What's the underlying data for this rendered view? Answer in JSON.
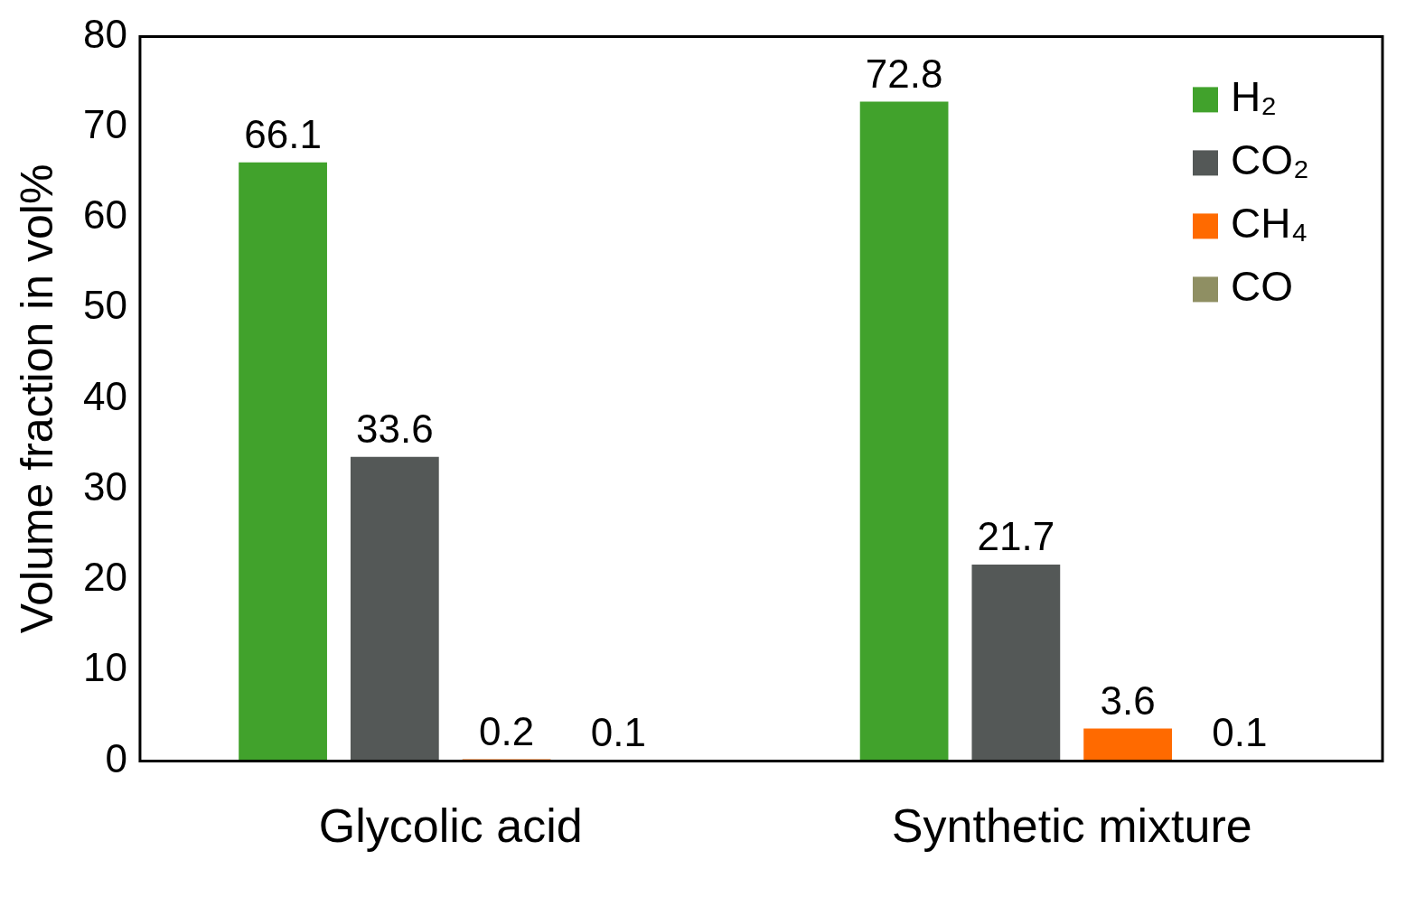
{
  "chart_data": {
    "type": "bar",
    "ylabel": "Volume fraction in vol%",
    "categories": [
      "Glycolic acid",
      "Synthetic mixture"
    ],
    "series": [
      {
        "name": "H₂",
        "color": "#41a22c",
        "values": [
          66.1,
          72.8
        ]
      },
      {
        "name": "CO₂",
        "color": "#545857",
        "values": [
          33.6,
          21.7
        ]
      },
      {
        "name": "CH₄",
        "color": "#ff6a00",
        "values": [
          0.2,
          3.6
        ]
      },
      {
        "name": "CO",
        "color": "#8f8f63",
        "values": [
          0.1,
          0.1
        ]
      }
    ],
    "ylim": [
      0,
      80
    ],
    "yticks": [
      0,
      10,
      20,
      30,
      40,
      50,
      60,
      70,
      80
    ],
    "grid": false,
    "legend": "top right",
    "data_labels": true
  }
}
